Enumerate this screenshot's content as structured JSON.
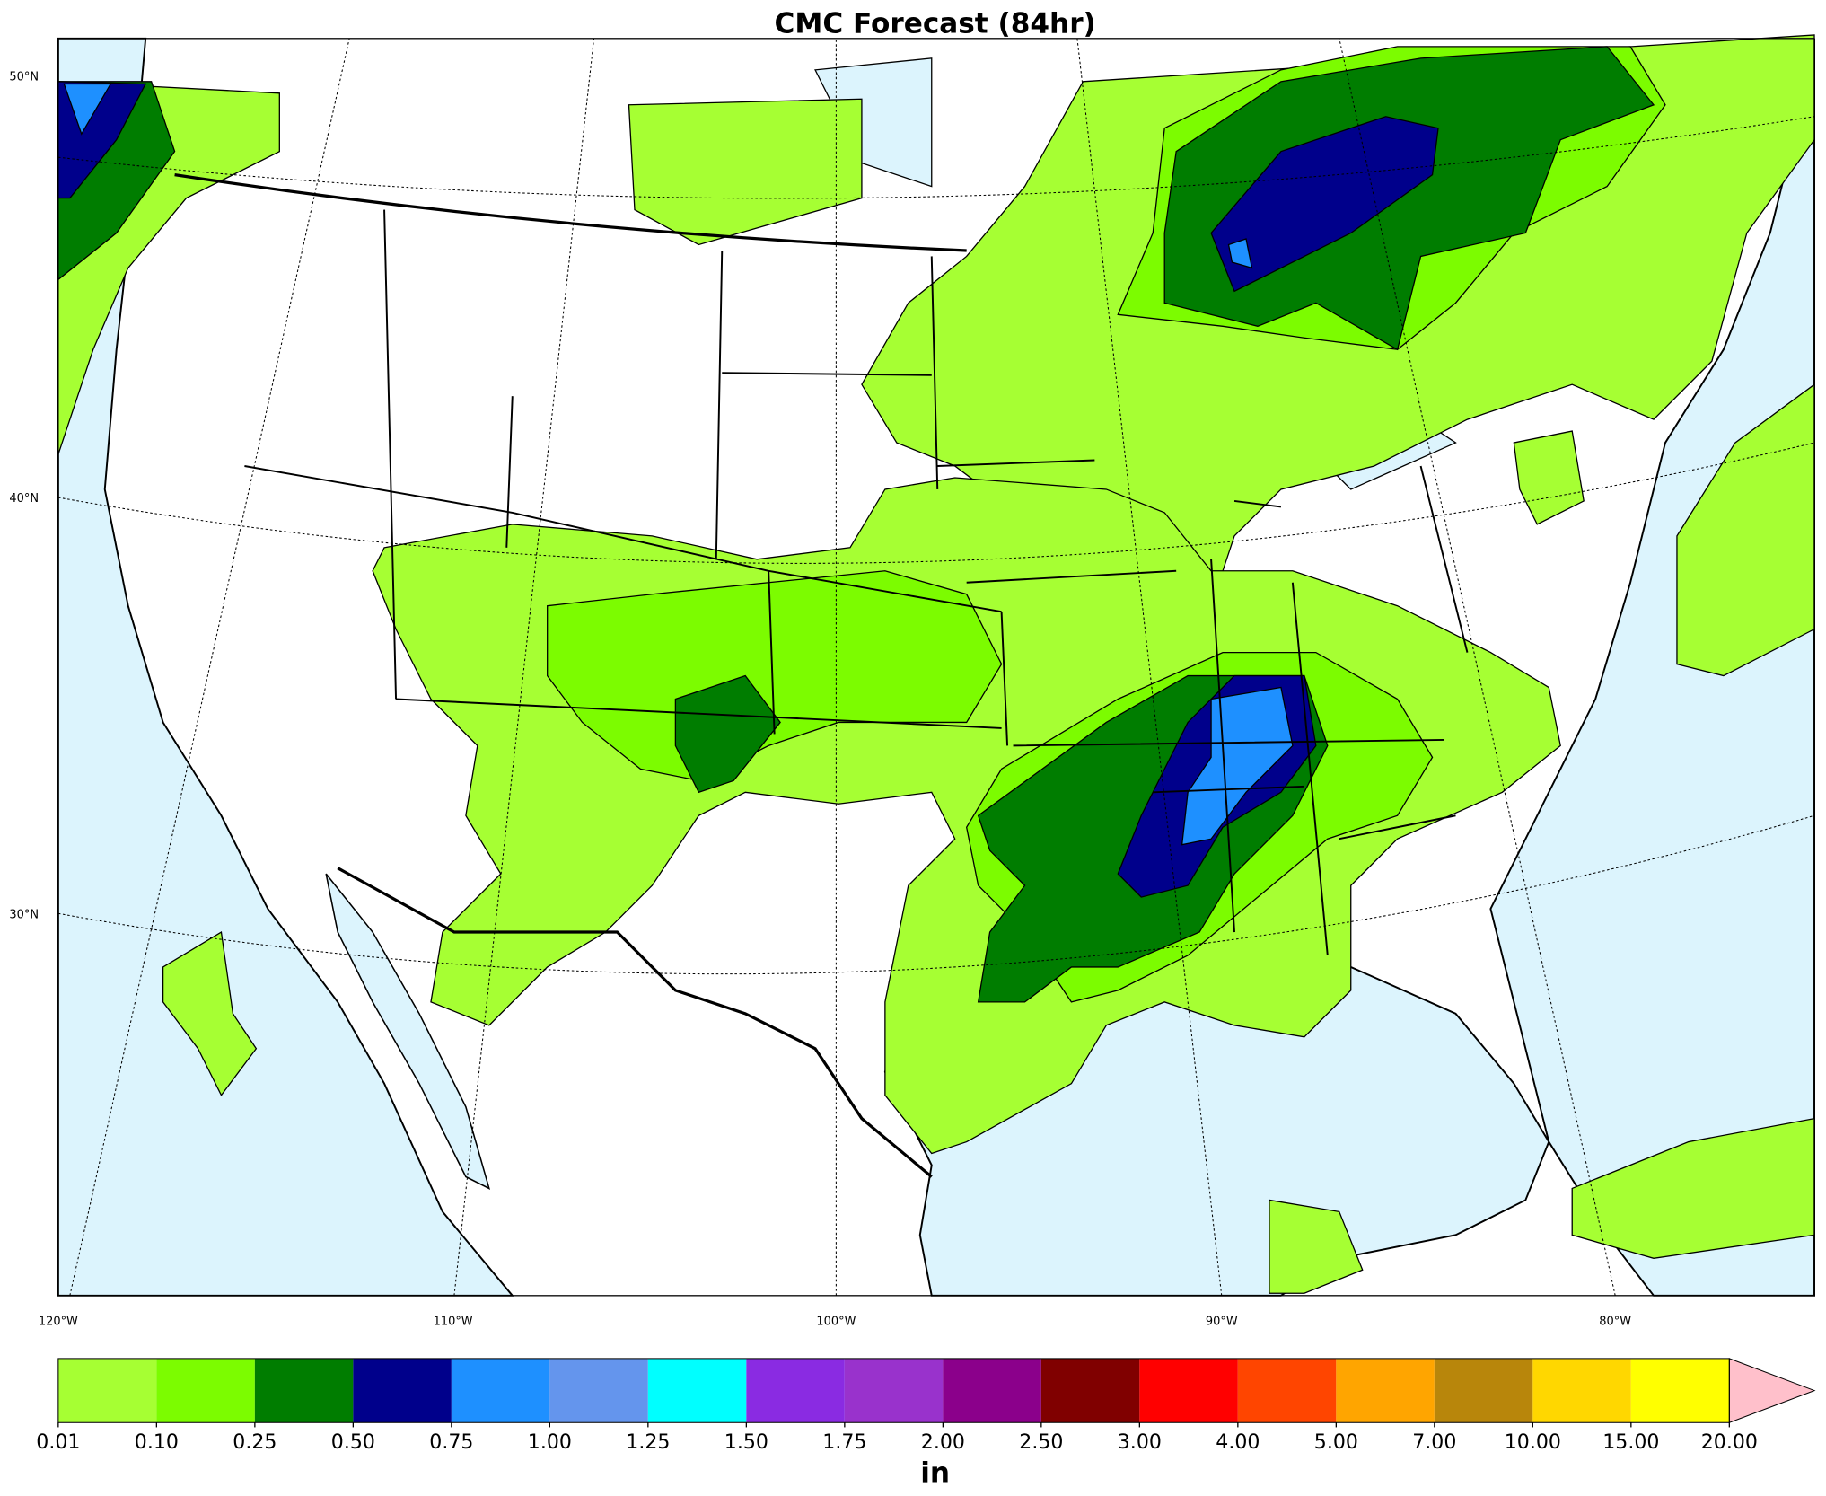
{
  "title": "CMC Forecast (84hr)",
  "lat_labels": [
    "50°N",
    "40°N",
    "30°N"
  ],
  "lon_labels": [
    "120°W",
    "110°W",
    "100°W",
    "90°W",
    "80°W"
  ],
  "colorbar": {
    "ticks": [
      "0.01",
      "0.10",
      "0.25",
      "0.50",
      "0.75",
      "1.00",
      "1.25",
      "1.50",
      "1.75",
      "2.00",
      "2.50",
      "3.00",
      "4.00",
      "5.00",
      "7.00",
      "10.00",
      "15.00",
      "20.00"
    ],
    "colors": [
      "#a6ff33",
      "#7cfc00",
      "#007d00",
      "#00008b",
      "#1e90ff",
      "#6495ed",
      "#00ffff",
      "#8a2be2",
      "#9932cc",
      "#8b008b",
      "#800000",
      "#ff0000",
      "#ff4500",
      "#ffa500",
      "#b8860b",
      "#ffd700",
      "#ffff00"
    ],
    "extend_color": "#ffc0cb",
    "unit": "in"
  }
}
